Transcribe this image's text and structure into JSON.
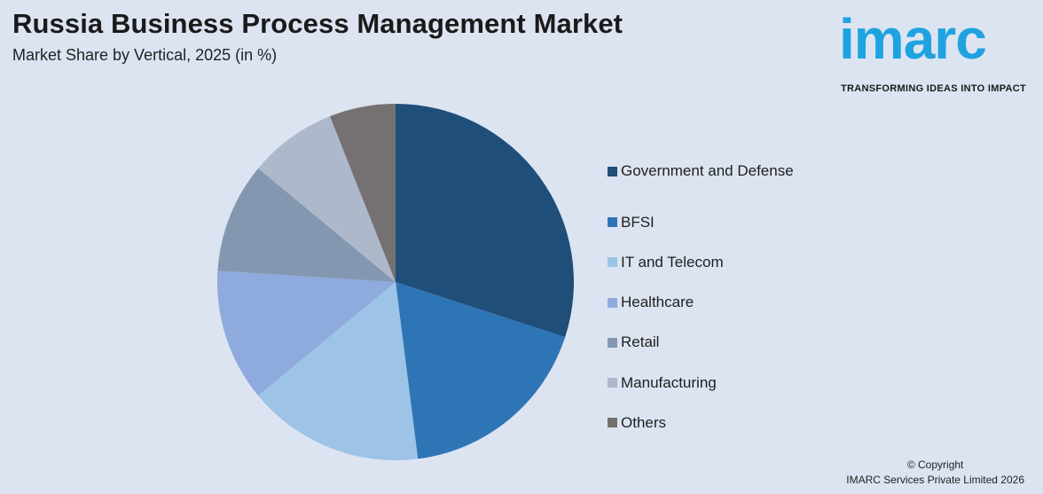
{
  "header": {
    "title": "Russia Business Process Management Market",
    "subtitle": "Market Share by Vertical, 2025 (in %)"
  },
  "logo": {
    "wordmark": "imarc",
    "tagline": "TRANSFORMING IDEAS INTO IMPACT",
    "color": "#1fa3e0"
  },
  "footer": {
    "copyright_line1": "© Copyright",
    "copyright_line2": "IMARC Services Private Limited 2026"
  },
  "chart_data": {
    "type": "pie",
    "title": "Russia Business Process Management Market",
    "subtitle": "Market Share by Vertical, 2025 (in %)",
    "legend_position": "right",
    "start_angle_deg": 0,
    "direction": "clockwise",
    "categories": [
      "Government and Defense",
      "BFSI",
      "IT and Telecom",
      "Healthcare",
      "Retail",
      "Manufacturing",
      "Others"
    ],
    "values": [
      30,
      18,
      16,
      12,
      10,
      8,
      6
    ],
    "colors": [
      "#1f4e79",
      "#2e75b6",
      "#9dc3e6",
      "#8faadc",
      "#8497b0",
      "#adb9ca",
      "#767171"
    ]
  }
}
